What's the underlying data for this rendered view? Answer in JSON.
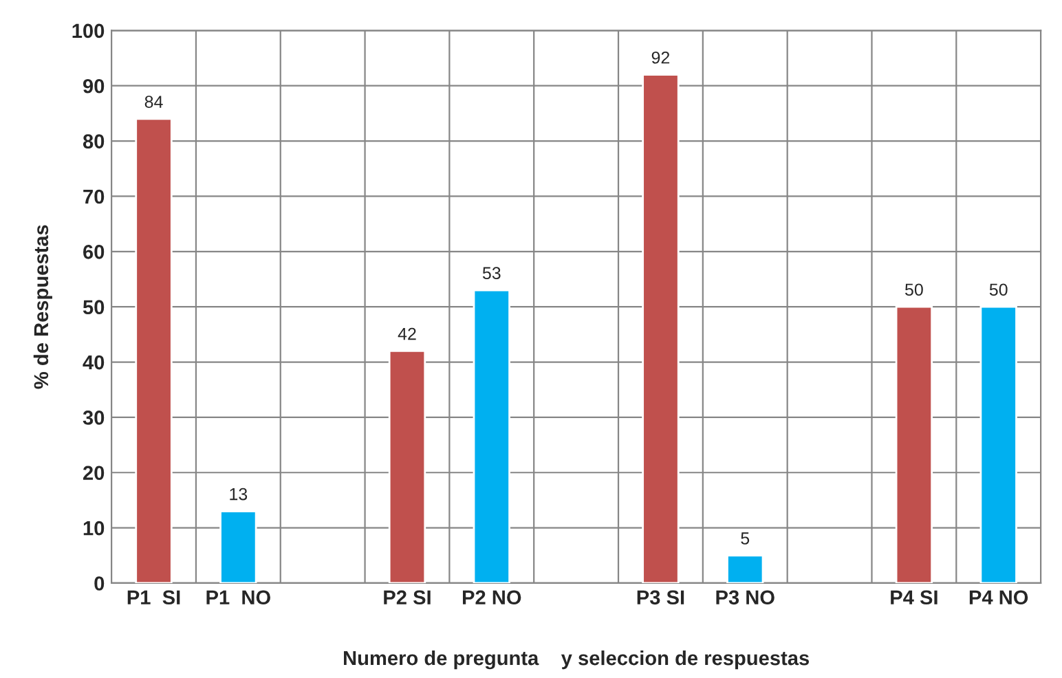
{
  "chart_data": {
    "type": "bar",
    "xlabel": "Numero de pregunta    y seleccion de respuestas",
    "ylabel": "% de Respuestas",
    "categories": [
      "P1  SI",
      "P1  NO",
      null,
      "P2 SI",
      "P2 NO",
      null,
      "P3 SI",
      "P3 NO",
      null,
      "P4 SI",
      "P4 NO"
    ],
    "values": [
      84,
      13,
      null,
      42,
      53,
      null,
      92,
      5,
      null,
      50,
      50
    ],
    "colors": [
      "#c0504d",
      "#00b0f0",
      "#c0504d",
      "#c0504d",
      "#00b0f0",
      "#c0504d",
      "#c0504d",
      "#00b0f0",
      "#c0504d",
      "#c0504d",
      "#00b0f0"
    ],
    "ylim": [
      0,
      100
    ],
    "yticks": [
      0,
      10,
      20,
      30,
      40,
      50,
      60,
      70,
      80,
      90,
      100
    ],
    "grid": true,
    "data_labels": true
  }
}
